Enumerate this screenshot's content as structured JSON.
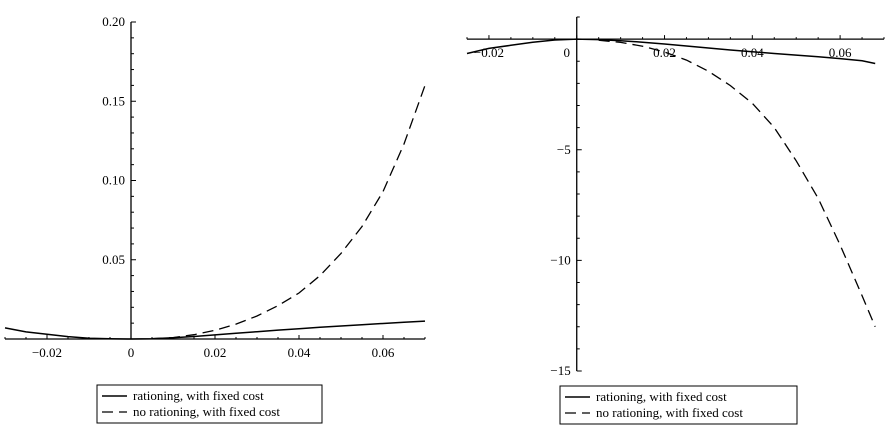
{
  "chart_data": [
    {
      "type": "line",
      "title": "",
      "xlabel": "",
      "ylabel": "",
      "xlim": [
        -0.03,
        0.07
      ],
      "ylim": [
        0,
        0.2
      ],
      "xticks": [
        -0.02,
        0,
        0.02,
        0.04,
        0.06
      ],
      "xtick_labels": [
        "-0.02",
        "0",
        "0.02",
        "0.04",
        "0.06"
      ],
      "yticks": [
        0.05,
        0.1,
        0.15,
        0.2
      ],
      "ytick_labels": [
        "0.05",
        "0.10",
        "0.15",
        "0.20"
      ],
      "grid": false,
      "legend_placement": "below",
      "series": [
        {
          "name": "rationing, with fixed cost",
          "style": "solid",
          "x": [
            -0.03,
            -0.025,
            -0.02,
            -0.015,
            -0.01,
            -0.005,
            0,
            0.005,
            0.01,
            0.015,
            0.02,
            0.025,
            0.03,
            0.035,
            0.04,
            0.045,
            0.05,
            0.055,
            0.06,
            0.065,
            0.07
          ],
          "y": [
            0.007,
            0.0045,
            0.003,
            0.0015,
            0.0005,
            0.0001,
            0,
            0.0002,
            0.0008,
            0.0016,
            0.0026,
            0.0036,
            0.0046,
            0.0056,
            0.0065,
            0.0074,
            0.0082,
            0.009,
            0.0098,
            0.0106,
            0.0113
          ]
        },
        {
          "name": "no rationing, with fixed cost",
          "style": "dashed",
          "x": [
            0.005,
            0.01,
            0.015,
            0.02,
            0.025,
            0.03,
            0.035,
            0.04,
            0.045,
            0.05,
            0.055,
            0.06,
            0.065,
            0.07
          ],
          "y": [
            0.0002,
            0.0009,
            0.0027,
            0.0055,
            0.0094,
            0.0145,
            0.021,
            0.029,
            0.04,
            0.054,
            0.071,
            0.093,
            0.123,
            0.16
          ]
        }
      ]
    },
    {
      "type": "line",
      "title": "",
      "xlabel": "",
      "ylabel": "",
      "xlim": [
        -0.025,
        0.07
      ],
      "ylim": [
        -15,
        1
      ],
      "xticks": [
        -0.02,
        0,
        0.02,
        0.04,
        0.06
      ],
      "xtick_labels": [
        "-0.02",
        "0",
        "0.02",
        "0.04",
        "0.06"
      ],
      "yticks": [
        -5,
        -10,
        -15
      ],
      "ytick_labels": [
        "-5",
        "-10",
        "-15"
      ],
      "grid": false,
      "legend_placement": "below",
      "series": [
        {
          "name": "rationing, with fixed cost",
          "style": "solid",
          "x": [
            -0.025,
            -0.02,
            -0.015,
            -0.01,
            -0.005,
            0,
            0.005,
            0.01,
            0.015,
            0.02,
            0.025,
            0.03,
            0.035,
            0.04,
            0.045,
            0.05,
            0.055,
            0.06,
            0.065,
            0.068
          ],
          "y": [
            -0.65,
            -0.42,
            -0.28,
            -0.14,
            -0.04,
            0,
            -0.02,
            -0.07,
            -0.14,
            -0.22,
            -0.31,
            -0.4,
            -0.49,
            -0.57,
            -0.65,
            -0.72,
            -0.8,
            -0.88,
            -0.98,
            -1.1
          ]
        },
        {
          "name": "no rationing, with fixed cost",
          "style": "dashed",
          "x": [
            0.005,
            0.01,
            0.015,
            0.02,
            0.025,
            0.03,
            0.035,
            0.04,
            0.045,
            0.05,
            0.055,
            0.06,
            0.065,
            0.068
          ],
          "y": [
            -0.05,
            -0.15,
            -0.32,
            -0.58,
            -0.95,
            -1.45,
            -2.1,
            -2.9,
            -4.0,
            -5.5,
            -7.2,
            -9.3,
            -11.6,
            -13.0
          ]
        }
      ]
    }
  ]
}
